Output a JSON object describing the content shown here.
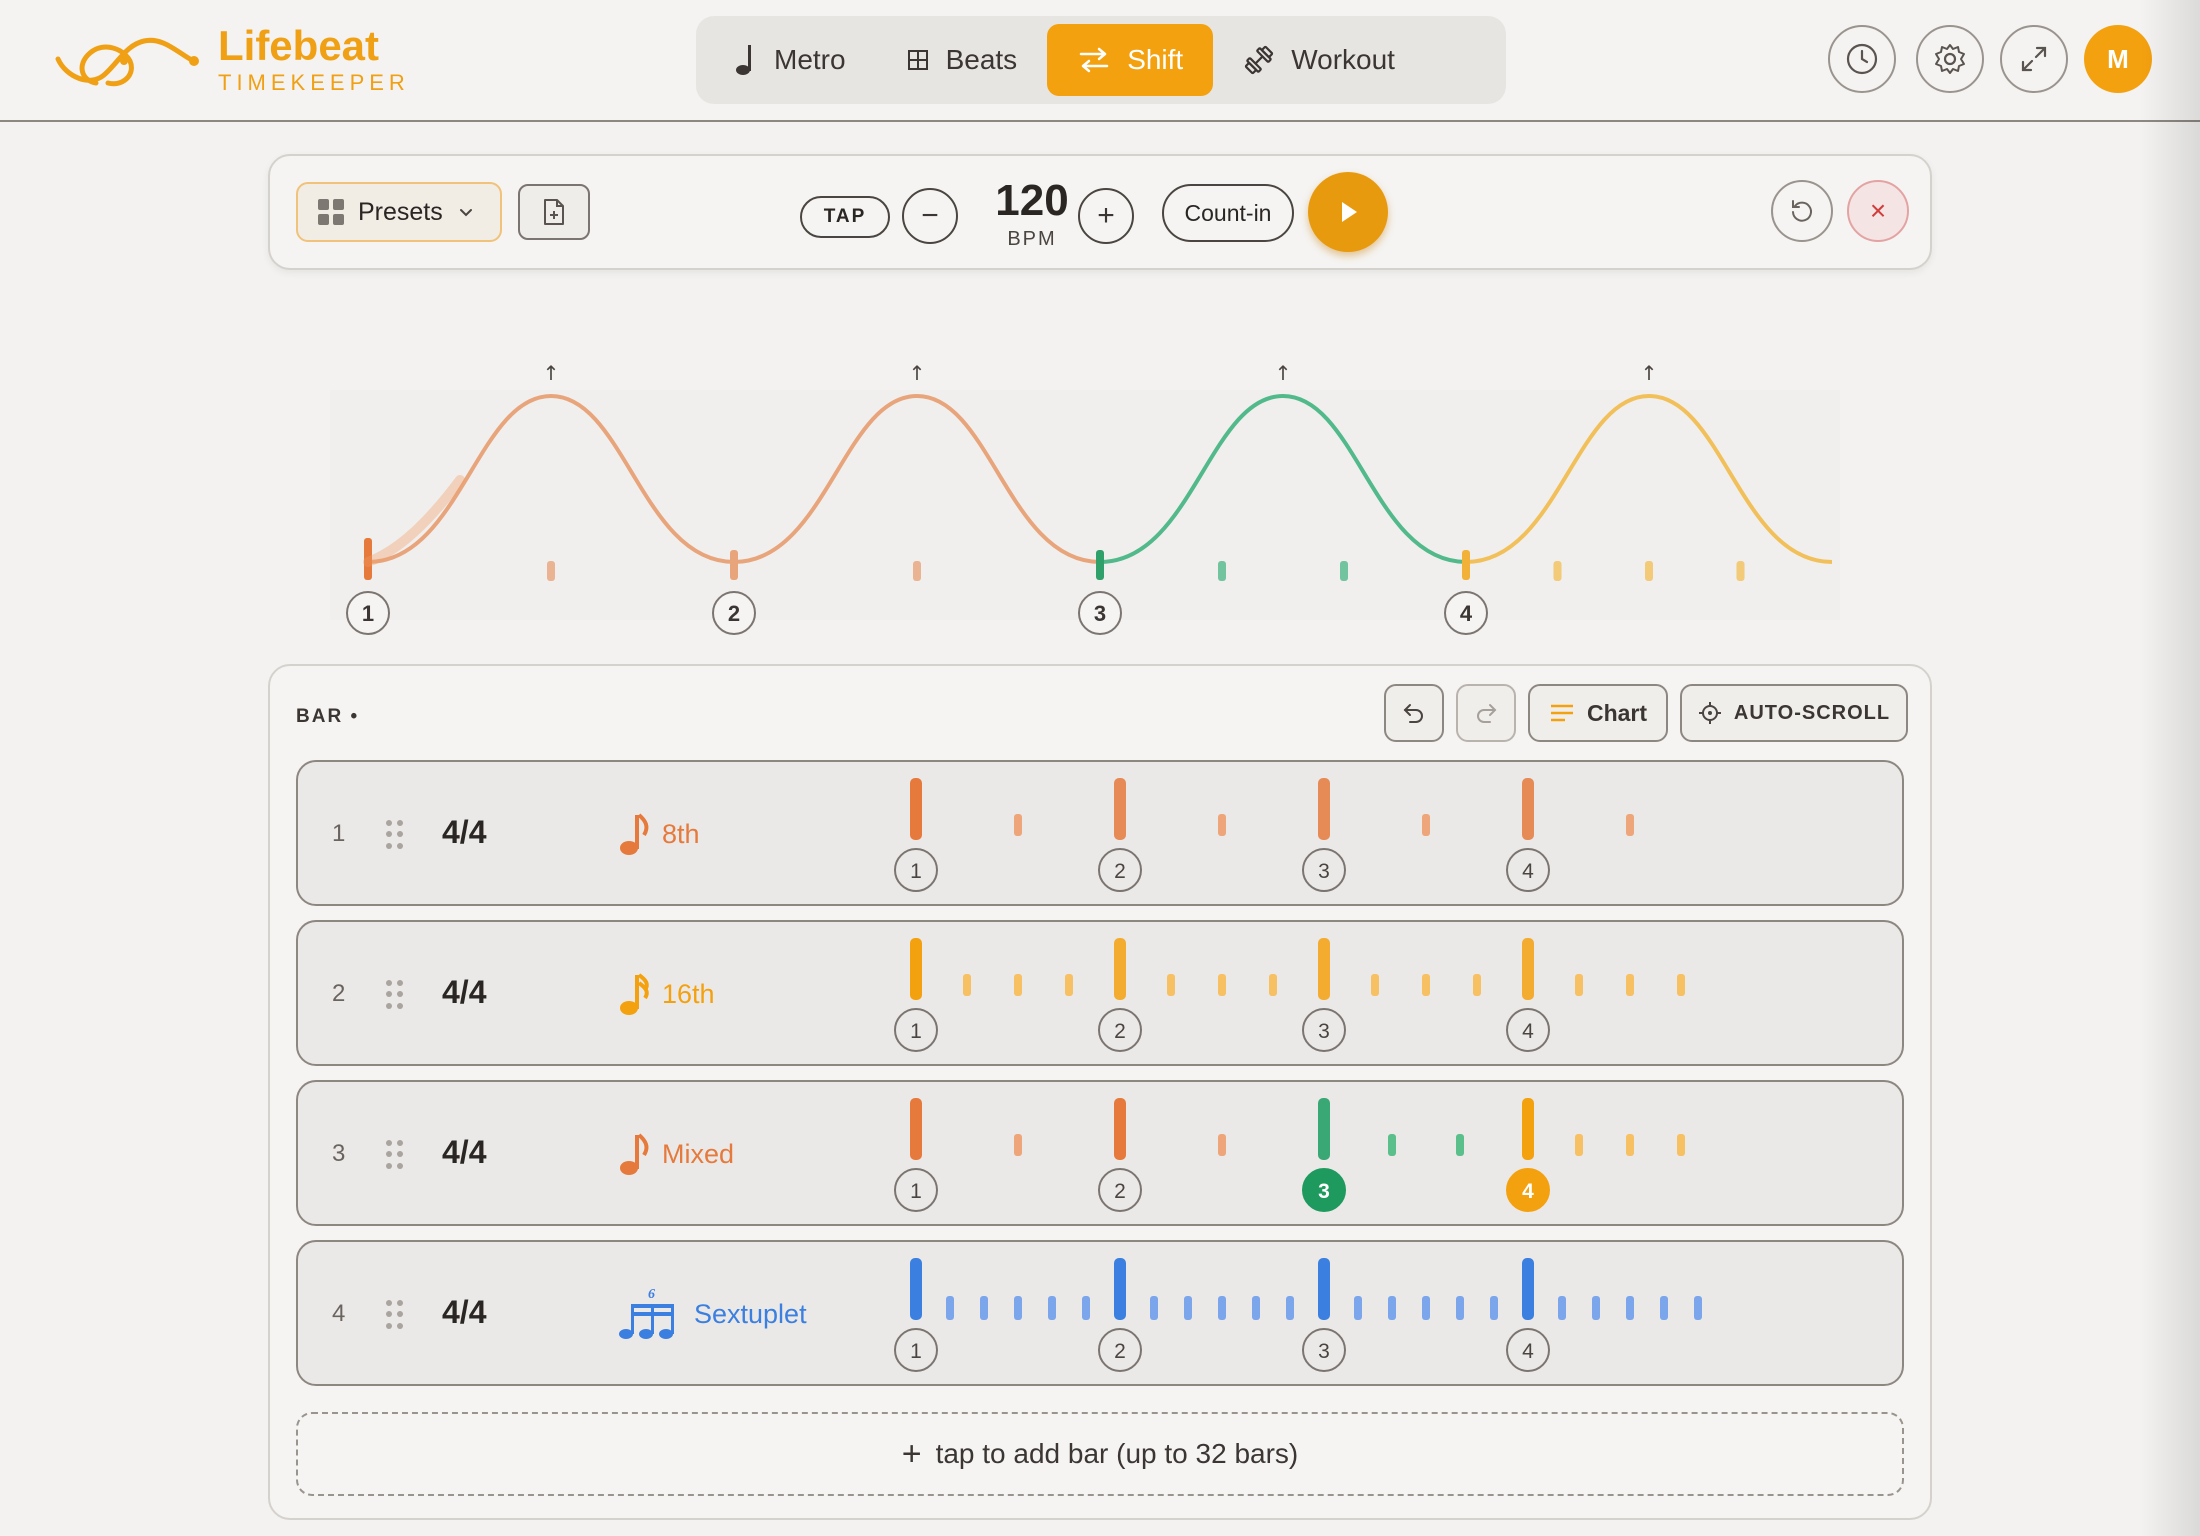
{
  "app": {
    "name": "Lifebeat",
    "subtitle": "TIMEKEEPER",
    "accent": "#f4a10f"
  },
  "nav": {
    "tabs": [
      {
        "label": "Metro",
        "icon": "quarter-note-icon",
        "active": false
      },
      {
        "label": "Beats",
        "icon": "grid-icon",
        "active": false
      },
      {
        "label": "Shift",
        "icon": "swap-arrows-icon",
        "active": true
      },
      {
        "label": "Workout",
        "icon": "dumbbell-icon",
        "active": false
      }
    ]
  },
  "header_actions": {
    "icons": [
      "clock-icon",
      "gear-icon",
      "expand-icon"
    ],
    "avatar_initial": "M"
  },
  "controls": {
    "presets_label": "Presets",
    "tap_label": "TAP",
    "minus_label": "−",
    "plus_label": "+",
    "bpm": "120",
    "bpm_unit": "BPM",
    "countin_label": "Count-in",
    "close_label": "×"
  },
  "wave": {
    "beat_labels": [
      "1",
      "2",
      "3",
      "4"
    ],
    "beat_colors": [
      "#e8a57c",
      "#e8a57c",
      "#52b98a",
      "#f2c05a"
    ]
  },
  "bars_panel": {
    "title": "BAR •",
    "chart_label": "Chart",
    "autoscroll_label": "AUTO-SCROLL",
    "add_bar_label": "tap to add bar (up to 32 bars)",
    "add_bar_icon": "+"
  },
  "bars": [
    {
      "number": "1",
      "signature": "4/4",
      "subdivision": "8th",
      "color": "#e57a3c",
      "subs_per_beat": 2,
      "beats": [
        "1",
        "2",
        "3",
        "4"
      ]
    },
    {
      "number": "2",
      "signature": "4/4",
      "subdivision": "16th",
      "color": "#f4a10f",
      "subs_per_beat": 4,
      "beats": [
        "1",
        "2",
        "3",
        "4"
      ]
    },
    {
      "number": "3",
      "signature": "4/4",
      "subdivision": "Mixed",
      "color": "#e57a3c",
      "beats": [
        "1",
        "2",
        "3",
        "4"
      ],
      "beat_colors": [
        "#e57a3c",
        "#e57a3c",
        "#1e9a5e",
        "#f4a10f"
      ],
      "subs_per_beat_list": [
        2,
        2,
        3,
        4
      ],
      "highlighted_beats": [
        3,
        4
      ]
    },
    {
      "number": "4",
      "signature": "4/4",
      "subdivision": "Sextuplet",
      "color": "#3b7fe0",
      "subs_per_beat": 6,
      "tuplet": "6",
      "beats": [
        "1",
        "2",
        "3",
        "4"
      ]
    }
  ]
}
